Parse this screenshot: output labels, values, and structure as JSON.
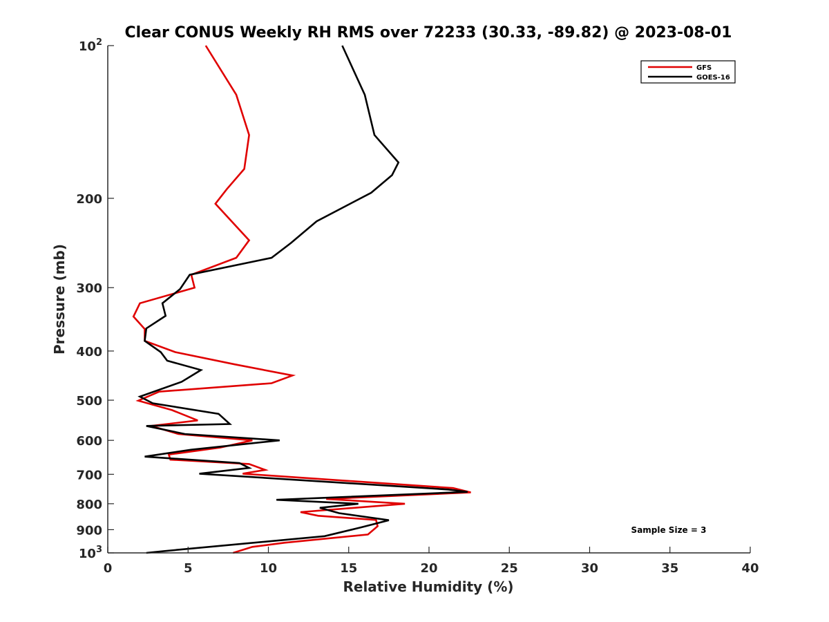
{
  "chart_data": {
    "type": "line",
    "title": "Clear CONUS Weekly RH RMS over 72233 (30.33, -89.82) @ 2023-08-01",
    "xlabel": "Relative Humidity (%)",
    "ylabel": "Pressure (mb)",
    "xlim": [
      0,
      40
    ],
    "ylim": [
      100,
      1000
    ],
    "yscale": "log",
    "yreversed": true,
    "grid": false,
    "legend_position": "top-right",
    "annotation": "Sample Size = 3",
    "xticks": [
      "0",
      "5",
      "10",
      "15",
      "20",
      "25",
      "30",
      "35",
      "40"
    ],
    "yticks": [
      {
        "value": 100,
        "base": "10",
        "exp": "2"
      },
      {
        "value": 200,
        "label": "200"
      },
      {
        "value": 300,
        "label": "300"
      },
      {
        "value": 400,
        "label": "400"
      },
      {
        "value": 500,
        "label": "500"
      },
      {
        "value": 600,
        "label": "600"
      },
      {
        "value": 700,
        "label": "700"
      },
      {
        "value": 800,
        "label": "800"
      },
      {
        "value": 900,
        "label": "900"
      },
      {
        "value": 1000,
        "base": "10",
        "exp": "3"
      }
    ],
    "series": [
      {
        "name": "GFS",
        "color": "#e00000",
        "points": [
          [
            6.1,
            100
          ],
          [
            8.0,
            125
          ],
          [
            8.8,
            150
          ],
          [
            8.5,
            175
          ],
          [
            7.4,
            192
          ],
          [
            6.7,
            205
          ],
          [
            8.8,
            242
          ],
          [
            8.0,
            262
          ],
          [
            5.2,
            283
          ],
          [
            5.4,
            300
          ],
          [
            2.0,
            322
          ],
          [
            1.6,
            342
          ],
          [
            2.3,
            362
          ],
          [
            2.3,
            382
          ],
          [
            4.2,
            402
          ],
          [
            7.9,
            425
          ],
          [
            11.5,
            447
          ],
          [
            10.2,
            463
          ],
          [
            3.2,
            481
          ],
          [
            1.9,
            501
          ],
          [
            4.0,
            523
          ],
          [
            5.6,
            548
          ],
          [
            2.7,
            562
          ],
          [
            4.4,
            583
          ],
          [
            9.0,
            600
          ],
          [
            7.0,
            620
          ],
          [
            3.8,
            640
          ],
          [
            3.9,
            655
          ],
          [
            8.8,
            668
          ],
          [
            9.8,
            686
          ],
          [
            8.4,
            698
          ],
          [
            21.5,
            745
          ],
          [
            22.6,
            760
          ],
          [
            13.6,
            783
          ],
          [
            18.5,
            800
          ],
          [
            12.0,
            831
          ],
          [
            13.1,
            845
          ],
          [
            16.7,
            861
          ],
          [
            16.8,
            886
          ],
          [
            16.2,
            920
          ],
          [
            11.0,
            955
          ],
          [
            9.0,
            973
          ],
          [
            7.8,
            1000
          ]
        ]
      },
      {
        "name": "GOES-16",
        "color": "#000000",
        "points": [
          [
            14.6,
            100
          ],
          [
            16.0,
            125
          ],
          [
            16.6,
            150
          ],
          [
            18.1,
            170
          ],
          [
            17.7,
            180
          ],
          [
            16.4,
            195
          ],
          [
            13.0,
            222
          ],
          [
            11.4,
            245
          ],
          [
            10.2,
            262
          ],
          [
            5.1,
            283
          ],
          [
            4.5,
            302
          ],
          [
            3.4,
            322
          ],
          [
            3.6,
            341
          ],
          [
            2.4,
            361
          ],
          [
            2.3,
            382
          ],
          [
            3.3,
            402
          ],
          [
            3.7,
            418
          ],
          [
            5.8,
            436
          ],
          [
            4.6,
            460
          ],
          [
            2.0,
            492
          ],
          [
            2.8,
            507
          ],
          [
            6.9,
            532
          ],
          [
            7.6,
            557
          ],
          [
            2.4,
            562
          ],
          [
            4.8,
            583
          ],
          [
            10.7,
            600
          ],
          [
            5.2,
            626
          ],
          [
            2.3,
            646
          ],
          [
            8.2,
            665
          ],
          [
            8.8,
            680
          ],
          [
            5.7,
            698
          ],
          [
            21.2,
            750
          ],
          [
            22.4,
            758
          ],
          [
            10.5,
            786
          ],
          [
            15.6,
            800
          ],
          [
            13.2,
            815
          ],
          [
            14.4,
            835
          ],
          [
            17.5,
            862
          ],
          [
            15.8,
            890
          ],
          [
            13.5,
            927
          ],
          [
            3.5,
            992
          ],
          [
            2.4,
            1000
          ]
        ]
      }
    ]
  }
}
